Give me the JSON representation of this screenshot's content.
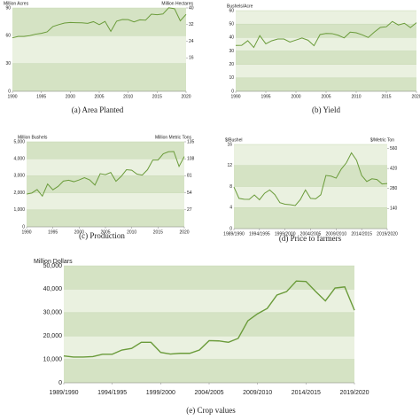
{
  "chart_data": [
    {
      "type": "line",
      "title": "(a) Area Planted",
      "y_label": "Million Acres",
      "y2_label": "Million Hectares",
      "x": [
        1990,
        1991,
        1992,
        1993,
        1994,
        1995,
        1996,
        1997,
        1998,
        1999,
        2000,
        2001,
        2002,
        2003,
        2004,
        2005,
        2006,
        2007,
        2008,
        2009,
        2010,
        2011,
        2012,
        2013,
        2014,
        2015,
        2016,
        2017,
        2018,
        2019,
        2020
      ],
      "series": [
        {
          "name": "Area Planted",
          "color": "#6a9b3a",
          "values": [
            57.8,
            59.2,
            59.2,
            60.1,
            61.7,
            62.6,
            64.2,
            70.0,
            72.0,
            73.7,
            74.3,
            74.1,
            74.0,
            73.4,
            75.2,
            72.0,
            75.5,
            64.7,
            75.7,
            77.5,
            77.4,
            75.0,
            77.2,
            76.8,
            83.3,
            82.7,
            83.5,
            90.2,
            89.2,
            76.1,
            83.1
          ]
        }
      ],
      "xlim": [
        1990,
        2020
      ],
      "xticks": [
        1990,
        1995,
        2000,
        2005,
        2010,
        2015,
        2020
      ],
      "ylim": [
        0,
        90
      ],
      "yticks": [
        0,
        30,
        60,
        90
      ],
      "y2lim": [
        0,
        40
      ],
      "y2ticks": [
        16,
        24,
        32,
        40
      ],
      "grid": true
    },
    {
      "type": "line",
      "title": "(b) Yield",
      "y_label": "Bushels/Acre",
      "x": [
        1990,
        1991,
        1992,
        1993,
        1994,
        1995,
        1996,
        1997,
        1998,
        1999,
        2000,
        2001,
        2002,
        2003,
        2004,
        2005,
        2006,
        2007,
        2008,
        2009,
        2010,
        2011,
        2012,
        2013,
        2014,
        2015,
        2016,
        2017,
        2018,
        2019,
        2020
      ],
      "series": [
        {
          "name": "Yield",
          "color": "#6a9b3a",
          "values": [
            34.1,
            34.2,
            37.6,
            32.6,
            41.4,
            35.3,
            37.6,
            38.9,
            38.9,
            36.6,
            38.1,
            39.6,
            38.0,
            33.9,
            42.2,
            43.0,
            42.9,
            41.7,
            39.7,
            44.0,
            43.5,
            42.0,
            40.0,
            44.0,
            47.5,
            48.0,
            51.9,
            49.3,
            50.6,
            47.4,
            51.0
          ]
        }
      ],
      "xlim": [
        1990,
        2020
      ],
      "xticks": [
        1990,
        1995,
        2000,
        2005,
        2010,
        2015,
        2020
      ],
      "ylim": [
        0,
        60
      ],
      "yticks": [
        0,
        10,
        20,
        30,
        40,
        50,
        60
      ],
      "grid": true
    },
    {
      "type": "line",
      "title": "(c) Production",
      "y_label": "Million Bushels",
      "y2_label": "Million Metric Tons",
      "x": [
        1990,
        1991,
        1992,
        1993,
        1994,
        1995,
        1996,
        1997,
        1998,
        1999,
        2000,
        2001,
        2002,
        2003,
        2004,
        2005,
        2006,
        2007,
        2008,
        2009,
        2010,
        2011,
        2012,
        2013,
        2014,
        2015,
        2016,
        2017,
        2018,
        2019,
        2020
      ],
      "series": [
        {
          "name": "Production",
          "color": "#6a9b3a",
          "values": [
            1926,
            1987,
            2190,
            1809,
            2517,
            2177,
            2380,
            2689,
            2741,
            2654,
            2758,
            2891,
            2756,
            2454,
            3124,
            3068,
            3197,
            2677,
            2967,
            3359,
            3329,
            3097,
            3042,
            3358,
            3927,
            3926,
            4296,
            4412,
            4428,
            3552,
            4135
          ]
        }
      ],
      "xlim": [
        1990,
        2020
      ],
      "xticks": [
        1990,
        1995,
        2000,
        2005,
        2010,
        2015,
        2020
      ],
      "ylim": [
        0,
        5000
      ],
      "yticks": [
        0,
        {
          "value": 1000,
          "label": "1,000"
        },
        {
          "value": 2000,
          "label": "2,000"
        },
        {
          "value": 3000,
          "label": "3,000"
        },
        {
          "value": 4000,
          "label": "4,000"
        },
        {
          "value": 5000,
          "label": "5,000"
        }
      ],
      "y2lim": [
        0,
        135
      ],
      "y2ticks": [
        27,
        54,
        81,
        108,
        135
      ],
      "grid": true
    },
    {
      "type": "line",
      "title": "(d) Price to farmers",
      "y_label": "$/Bushel",
      "y2_label": "$/Metric Ton",
      "categories": [
        "1989/1990",
        null,
        null,
        null,
        null,
        "1994/1995",
        null,
        null,
        null,
        null,
        "1999/2000",
        null,
        null,
        null,
        null,
        "2004/2005",
        null,
        null,
        null,
        null,
        "2009/2010",
        null,
        null,
        null,
        null,
        "2014/2015",
        null,
        null,
        null,
        null,
        "2019/2020"
      ],
      "series": [
        {
          "name": "Price",
          "color": "#6a9b3a",
          "values": [
            7.9,
            5.74,
            5.58,
            5.56,
            6.4,
            5.48,
            6.72,
            7.35,
            6.47,
            4.93,
            4.63,
            4.54,
            4.38,
            5.53,
            7.34,
            5.74,
            5.66,
            6.43,
            10.1,
            9.97,
            9.59,
            11.3,
            12.5,
            14.4,
            13.0,
            10.1,
            8.95,
            9.47,
            9.33,
            8.48,
            8.57
          ]
        }
      ],
      "ylim": [
        0,
        16
      ],
      "yticks": [
        0,
        4,
        8,
        12,
        16
      ],
      "y2lim": [
        0,
        588
      ],
      "y2ticks": [
        140,
        280,
        420,
        560
      ],
      "grid": true
    },
    {
      "type": "line",
      "title": "(e) Crop values",
      "y_label": "Million Dollars",
      "categories": [
        "1989/1990",
        null,
        null,
        null,
        null,
        "1994/1995",
        null,
        null,
        null,
        null,
        "1999/2000",
        null,
        null,
        null,
        null,
        "2004/2005",
        null,
        null,
        null,
        null,
        "2009/2010",
        null,
        null,
        null,
        null,
        "2014/2015",
        null,
        null,
        null,
        null,
        "2019/2020"
      ],
      "series": [
        {
          "name": "Crop values",
          "color": "#6a9b3a",
          "values": [
            11500,
            11000,
            11000,
            11200,
            12200,
            12200,
            14000,
            14700,
            17300,
            17300,
            13000,
            12300,
            12600,
            12600,
            14000,
            18000,
            17900,
            17300,
            19000,
            26500,
            29500,
            31800,
            37500,
            39000,
            43500,
            43300,
            39000,
            35000,
            40500,
            41000,
            31000
          ]
        }
      ],
      "ylim": [
        0,
        50000
      ],
      "yticks": [
        0,
        {
          "value": 10000,
          "label": "10,000"
        },
        {
          "value": 20000,
          "label": "20,000"
        },
        {
          "value": 30000,
          "label": "30,000"
        },
        {
          "value": 40000,
          "label": "40,000"
        },
        {
          "value": 50000,
          "label": "50,000"
        }
      ],
      "grid": true
    }
  ]
}
